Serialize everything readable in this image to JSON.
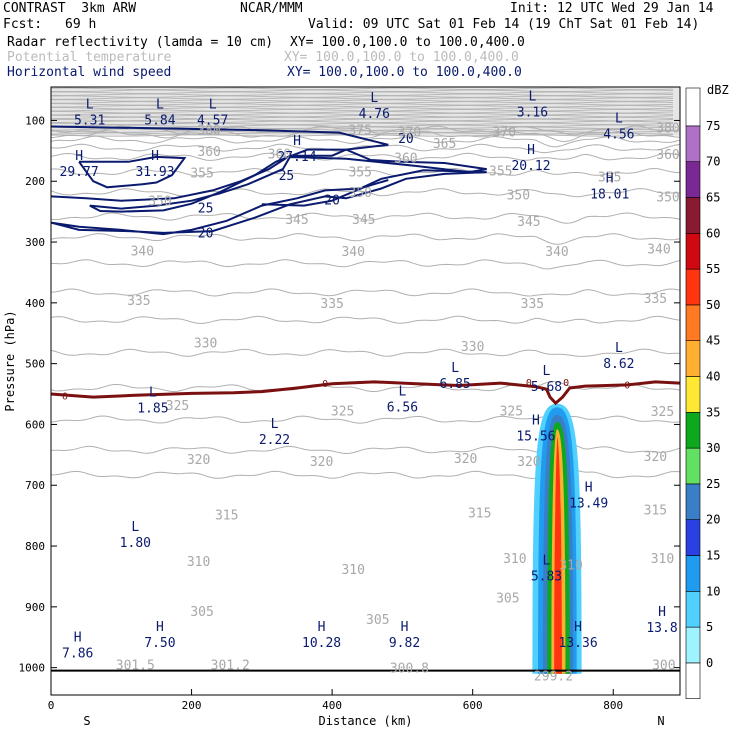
{
  "header": {
    "model": "CONTRAST  3km ARW",
    "org": "NCAR/MMM",
    "init": "Init: 12 UTC Wed 29 Jan 14",
    "fcst_label": "Fcst:",
    "fcst_value": "69 h",
    "valid": "Valid: 09 UTC Sat 01 Feb 14 (19 ChT Sat 01 Feb 14)",
    "fields": [
      {
        "name": "Radar reflectivity (lamda = 10 cm)",
        "xy": "XY= 100.0,100.0 to 100.0,400.0",
        "color": "#000000"
      },
      {
        "name": "Potential temperature",
        "xy": "XY= 100.0,100.0 to 100.0,400.0",
        "color": "#bbbbbb"
      },
      {
        "name": "Horizontal wind speed",
        "xy": "XY= 100.0,100.0 to 100.0,400.0",
        "color": "#0a1a6e"
      }
    ]
  },
  "chart_data": {
    "type": "cross-section",
    "xlabel": "Distance (km)",
    "ylabel": "Pressure (hPa)",
    "xlim": [
      0,
      895
    ],
    "ylim": [
      1045,
      45
    ],
    "x_ticks": [
      0,
      200,
      400,
      600,
      800
    ],
    "y_ticks": [
      100,
      200,
      300,
      400,
      500,
      600,
      700,
      800,
      900,
      1000
    ],
    "end_labels": {
      "left": "S",
      "right": "N"
    },
    "colorbar": {
      "unit": "dBZ",
      "levels": [
        0,
        5,
        10,
        15,
        20,
        25,
        30,
        35,
        40,
        45,
        50,
        55,
        60,
        65,
        70,
        75
      ],
      "colors": [
        "#ffffff",
        "#9ff3ff",
        "#4fd0ff",
        "#1f9cf0",
        "#2b40e0",
        "#3a7ec8",
        "#63e063",
        "#0ea81e",
        "#ffe833",
        "#ffb030",
        "#ff7a22",
        "#ff3410",
        "#d00810",
        "#8a1a32",
        "#7a2894",
        "#b070c8",
        "#ffffff"
      ]
    },
    "theta_contours": [
      {
        "label": "380",
        "p": 115,
        "labels_x": [
          225,
          895
        ]
      },
      {
        "label": "375",
        "p": 123,
        "labels_x": [
          390,
          610
        ]
      },
      {
        "label": "370",
        "p": 132,
        "labels_x": [
          470,
          580
        ]
      },
      {
        "label": "365",
        "p": 145,
        "labels_x": [
          560
        ]
      },
      {
        "label": "360",
        "p": 160,
        "labels_x": [
          225,
          325,
          505,
          895
        ]
      },
      {
        "label": "355",
        "p": 185,
        "labels_x": [
          215,
          435,
          640,
          795
        ]
      },
      {
        "label": "350",
        "p": 218,
        "labels_x": [
          155,
          440,
          665,
          885
        ]
      },
      {
        "label": "345",
        "p": 258,
        "labels_x": [
          350,
          445,
          680
        ]
      },
      {
        "label": "340",
        "p": 292,
        "labels_x": [
          130,
          430,
          720,
          830
        ]
      },
      {
        "label": "335",
        "p": 335,
        "labels_x": [
          125,
          400,
          685,
          810
        ]
      },
      {
        "label": "330",
        "p": 383,
        "labels_x": [
          220,
          600,
          840
        ]
      },
      {
        "label": "325",
        "p": 428,
        "labels_x": [
          225,
          415,
          685,
          800,
          840
        ]
      },
      {
        "label": "320",
        "p": 482,
        "labels_x": [
          210,
          385,
          590,
          680,
          805
        ]
      },
      {
        "label": "315",
        "p": 540,
        "labels_x": [
          250,
          610,
          840
        ]
      },
      {
        "label": "310",
        "p": 592,
        "labels_x": [
          210,
          430,
          660,
          740,
          870
        ]
      },
      {
        "label": "305",
        "p": 642,
        "labels_x": [
          215,
          465,
          720
        ]
      },
      {
        "label": "301.5",
        "p": 683,
        "labels_x": [
          120
        ]
      }
    ],
    "theta_labels": [
      {
        "text": "380",
        "x": 225,
        "p": 115
      },
      {
        "text": "375",
        "x": 440,
        "p": 115
      },
      {
        "text": "370",
        "x": 510,
        "p": 118
      },
      {
        "text": "370",
        "x": 645,
        "p": 118
      },
      {
        "text": "380",
        "x": 880,
        "p": 112
      },
      {
        "text": "365",
        "x": 560,
        "p": 137
      },
      {
        "text": "360",
        "x": 225,
        "p": 150
      },
      {
        "text": "360",
        "x": 325,
        "p": 154
      },
      {
        "text": "360",
        "x": 505,
        "p": 161
      },
      {
        "text": "360",
        "x": 880,
        "p": 155
      },
      {
        "text": "355",
        "x": 215,
        "p": 186
      },
      {
        "text": "355",
        "x": 440,
        "p": 184
      },
      {
        "text": "355",
        "x": 640,
        "p": 182
      },
      {
        "text": "355",
        "x": 795,
        "p": 192
      },
      {
        "text": "350",
        "x": 155,
        "p": 232
      },
      {
        "text": "350",
        "x": 440,
        "p": 218
      },
      {
        "text": "350",
        "x": 665,
        "p": 222
      },
      {
        "text": "350",
        "x": 880,
        "p": 225
      },
      {
        "text": "345",
        "x": 350,
        "p": 262
      },
      {
        "text": "345",
        "x": 445,
        "p": 262
      },
      {
        "text": "345",
        "x": 680,
        "p": 265
      },
      {
        "text": "340",
        "x": 130,
        "p": 314
      },
      {
        "text": "340",
        "x": 430,
        "p": 315
      },
      {
        "text": "340",
        "x": 720,
        "p": 315
      },
      {
        "text": "340",
        "x": 865,
        "p": 311
      },
      {
        "text": "335",
        "x": 125,
        "p": 395
      },
      {
        "text": "335",
        "x": 400,
        "p": 400
      },
      {
        "text": "335",
        "x": 685,
        "p": 400
      },
      {
        "text": "335",
        "x": 860,
        "p": 392
      },
      {
        "text": "330",
        "x": 220,
        "p": 465
      },
      {
        "text": "330",
        "x": 600,
        "p": 471
      },
      {
        "text": "325",
        "x": 180,
        "p": 568
      },
      {
        "text": "325",
        "x": 415,
        "p": 577
      },
      {
        "text": "325",
        "x": 655,
        "p": 577
      },
      {
        "text": "325",
        "x": 870,
        "p": 578
      },
      {
        "text": "320",
        "x": 210,
        "p": 657
      },
      {
        "text": "320",
        "x": 385,
        "p": 660
      },
      {
        "text": "320",
        "x": 590,
        "p": 655
      },
      {
        "text": "320",
        "x": 680,
        "p": 660
      },
      {
        "text": "320",
        "x": 860,
        "p": 652
      },
      {
        "text": "315",
        "x": 250,
        "p": 748
      },
      {
        "text": "315",
        "x": 610,
        "p": 745
      },
      {
        "text": "315",
        "x": 860,
        "p": 740
      },
      {
        "text": "310",
        "x": 210,
        "p": 825
      },
      {
        "text": "310",
        "x": 430,
        "p": 838
      },
      {
        "text": "310",
        "x": 660,
        "p": 820
      },
      {
        "text": "310",
        "x": 740,
        "p": 830
      },
      {
        "text": "310",
        "x": 870,
        "p": 820
      },
      {
        "text": "305",
        "x": 215,
        "p": 907
      },
      {
        "text": "305",
        "x": 465,
        "p": 920
      },
      {
        "text": "305",
        "x": 650,
        "p": 885
      },
      {
        "text": "301.5",
        "x": 120,
        "p": 995
      },
      {
        "text": "301.2",
        "x": 255,
        "p": 995
      },
      {
        "text": "300.8",
        "x": 510,
        "p": 1000
      },
      {
        "text": "300",
        "x": 872,
        "p": 995
      },
      {
        "text": "299.2",
        "x": 715,
        "p": 1013
      }
    ],
    "hl_labels": [
      {
        "letter": "L",
        "value": "5.31",
        "x": 55,
        "p": 85
      },
      {
        "letter": "L",
        "value": "5.84",
        "x": 155,
        "p": 85
      },
      {
        "letter": "L",
        "value": "4.57",
        "x": 230,
        "p": 85
      },
      {
        "letter": "L",
        "value": "4.76",
        "x": 460,
        "p": 75
      },
      {
        "letter": "L",
        "value": "3.16",
        "x": 685,
        "p": 72
      },
      {
        "letter": "L",
        "value": "4.56",
        "x": 808,
        "p": 108
      },
      {
        "letter": "H",
        "value": "29.77",
        "x": 40,
        "p": 170
      },
      {
        "letter": "H",
        "value": "31.93",
        "x": 148,
        "p": 170
      },
      {
        "letter": "H",
        "value": "27.14",
        "x": 350,
        "p": 145
      },
      {
        "letter": "H",
        "value": "20.12",
        "x": 683,
        "p": 160
      },
      {
        "letter": "H",
        "value": "18.01",
        "x": 795,
        "p": 207
      },
      {
        "letter": "L",
        "value": "8.62",
        "x": 808,
        "p": 486
      },
      {
        "letter": "L",
        "value": "6.85",
        "x": 575,
        "p": 519
      },
      {
        "letter": "L",
        "value": "5.68",
        "x": 705,
        "p": 524
      },
      {
        "letter": "L",
        "value": "1.85",
        "x": 145,
        "p": 559
      },
      {
        "letter": "L",
        "value": "6.56",
        "x": 500,
        "p": 557
      },
      {
        "letter": "L",
        "value": "2.22",
        "x": 318,
        "p": 611
      },
      {
        "letter": "H",
        "value": "15.56",
        "x": 690,
        "p": 605
      },
      {
        "letter": "H",
        "value": "13.49",
        "x": 765,
        "p": 715
      },
      {
        "letter": "L",
        "value": "1.80",
        "x": 120,
        "p": 780
      },
      {
        "letter": "L",
        "value": "5.83",
        "x": 705,
        "p": 835
      },
      {
        "letter": "H",
        "value": "7.86",
        "x": 38,
        "p": 962
      },
      {
        "letter": "H",
        "value": "7.50",
        "x": 155,
        "p": 945
      },
      {
        "letter": "H",
        "value": "10.28",
        "x": 385,
        "p": 945
      },
      {
        "letter": "H",
        "value": "9.82",
        "x": 503,
        "p": 945
      },
      {
        "letter": "H",
        "value": "13.36",
        "x": 750,
        "p": 945
      },
      {
        "letter": "H",
        "value": "13.8",
        "x": 870,
        "p": 920
      }
    ],
    "wind_contours": [
      {
        "value": "25",
        "points": [
          [
            40,
            168
          ],
          [
            110,
            168
          ],
          [
            150,
            160
          ],
          [
            190,
            162
          ],
          [
            172,
            190
          ],
          [
            150,
            202
          ],
          [
            130,
            205
          ],
          [
            80,
            210
          ],
          [
            60,
            200
          ],
          [
            40,
            168
          ]
        ],
        "label": {
          "x": 335,
          "p": 190
        }
      },
      {
        "value": "20",
        "points": [
          [
            0,
            110
          ],
          [
            150,
            113
          ],
          [
            300,
            116
          ],
          [
            410,
            120
          ],
          [
            480,
            140
          ],
          [
            420,
            148
          ],
          [
            400,
            158
          ],
          [
            340,
            158
          ],
          [
            310,
            180
          ],
          [
            270,
            200
          ],
          [
            230,
            215
          ],
          [
            175,
            228
          ],
          [
            100,
            232
          ],
          [
            50,
            228
          ],
          [
            0,
            225
          ]
        ],
        "label": {
          "x": 505,
          "p": 129
        }
      },
      {
        "value": "25",
        "points": [
          [
            55,
            240
          ],
          [
            100,
            245
          ],
          [
            150,
            240
          ],
          [
            200,
            232
          ],
          [
            240,
            220
          ],
          [
            280,
            205
          ],
          [
            330,
            180
          ],
          [
            340,
            160
          ],
          [
            420,
            163
          ],
          [
            520,
            175
          ],
          [
            595,
            185
          ],
          [
            620,
            180
          ],
          [
            560,
            170
          ],
          [
            500,
            168
          ],
          [
            455,
            165
          ],
          [
            420,
            148
          ],
          [
            365,
            148
          ],
          [
            320,
            168
          ],
          [
            290,
            190
          ],
          [
            240,
            218
          ],
          [
            200,
            237
          ],
          [
            160,
            248
          ],
          [
            100,
            250
          ],
          [
            70,
            249
          ],
          [
            55,
            240
          ]
        ],
        "label": {
          "x": 220,
          "p": 243
        }
      },
      {
        "value": "20",
        "points": [
          [
            0,
            268
          ],
          [
            40,
            280
          ],
          [
            110,
            282
          ],
          [
            160,
            285
          ],
          [
            230,
            282
          ],
          [
            290,
            260
          ],
          [
            340,
            238
          ],
          [
            390,
            225
          ],
          [
            420,
            228
          ],
          [
            470,
            212
          ],
          [
            505,
            196
          ],
          [
            560,
            188
          ],
          [
            620,
            185
          ],
          [
            530,
            182
          ],
          [
            470,
            196
          ],
          [
            440,
            212
          ],
          [
            390,
            215
          ],
          [
            350,
            228
          ],
          [
            300,
            240
          ],
          [
            250,
            265
          ],
          [
            200,
            280
          ],
          [
            160,
            287
          ],
          [
            100,
            280
          ],
          [
            40,
            275
          ],
          [
            0,
            268
          ]
        ],
        "label": {
          "x": 220,
          "p": 284
        }
      },
      {
        "value": "20",
        "points": [
          [
            300,
            238
          ],
          [
            360,
            240
          ],
          [
            400,
            232
          ],
          [
            445,
            210
          ],
          [
            480,
            198
          ]
        ],
        "label": {
          "x": 400,
          "p": 230
        }
      }
    ],
    "zero_contour": {
      "value": "0",
      "points": [
        [
          0,
          550
        ],
        [
          60,
          555
        ],
        [
          120,
          552
        ],
        [
          200,
          549
        ],
        [
          260,
          548
        ],
        [
          300,
          546
        ],
        [
          350,
          540
        ],
        [
          400,
          533
        ],
        [
          460,
          530
        ],
        [
          520,
          533
        ],
        [
          580,
          536
        ],
        [
          640,
          532
        ],
        [
          690,
          538
        ],
        [
          705,
          542
        ],
        [
          710,
          555
        ],
        [
          718,
          565
        ],
        [
          728,
          555
        ],
        [
          738,
          540
        ],
        [
          760,
          537
        ],
        [
          820,
          535
        ],
        [
          860,
          530
        ],
        [
          895,
          532
        ]
      ],
      "labels": [
        {
          "x": 20,
          "p": 552
        },
        {
          "x": 390,
          "p": 532
        },
        {
          "x": 680,
          "p": 530
        },
        {
          "x": 733,
          "p": 530
        },
        {
          "x": 820,
          "p": 534
        }
      ]
    },
    "reflectivity_column": {
      "x_center": 720,
      "p_top": 560,
      "p_bottom": 1010,
      "layers": [
        {
          "dbz": 5,
          "x_left": 685,
          "x_right": 755
        },
        {
          "dbz": 10,
          "x_left": 693,
          "x_right": 748
        },
        {
          "dbz": 20,
          "x_left": 700,
          "x_right": 743
        },
        {
          "dbz": 30,
          "x_left": 706,
          "x_right": 738
        },
        {
          "dbz": 40,
          "x_left": 712,
          "x_right": 732
        },
        {
          "dbz": 50,
          "x_left": 716,
          "x_right": 727
        }
      ]
    },
    "surface_p": 1005
  }
}
